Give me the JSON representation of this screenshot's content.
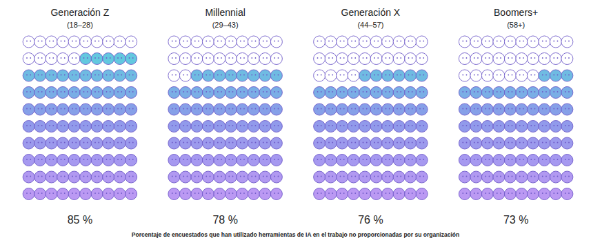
{
  "chart_data": {
    "type": "waffle",
    "caption": "Porcentaje de encuestados que han utilizado herramientas de IA en el trabajo no proporcionadas por su organización",
    "categories": [
      "Generación Z",
      "Millennial",
      "Generación X",
      "Boomers+"
    ],
    "subtitles": [
      "(18–28)",
      "(29–43)",
      "(44–57)",
      "(58+)"
    ],
    "values": [
      85,
      78,
      76,
      73
    ],
    "value_labels": [
      "85 %",
      "78 %",
      "76 %",
      "73 %"
    ],
    "data_labels": true,
    "tick_labels": false,
    "color": "#b48ef2"
  }
}
